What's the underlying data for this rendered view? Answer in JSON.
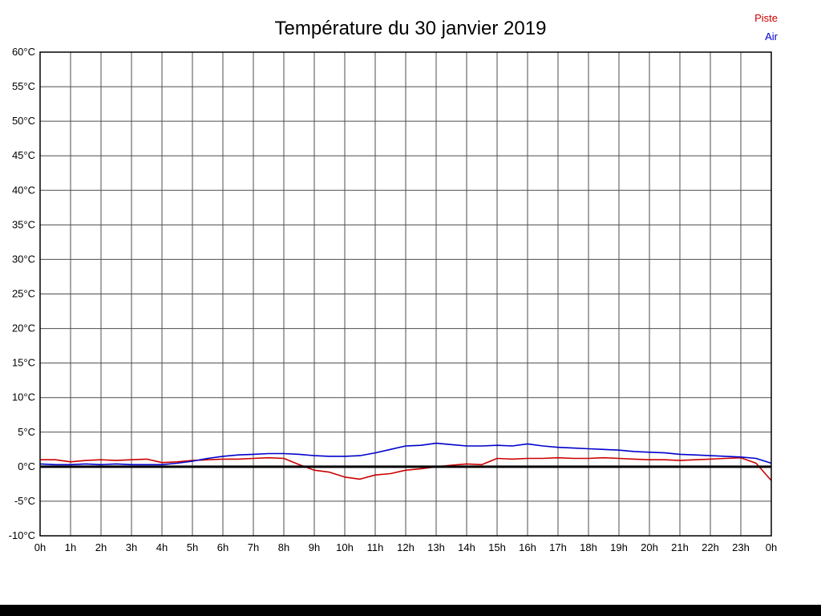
{
  "page": {
    "title": "Température du 30 janvier 2019"
  },
  "legend": {
    "items": [
      {
        "label": "Piste",
        "color": "#cc0000"
      },
      {
        "label": "Air",
        "color": "#0000cc"
      }
    ]
  },
  "chart_data": {
    "type": "line",
    "title": "Température du 30 janvier 2019",
    "xlabel": "",
    "ylabel": "",
    "xlim": [
      0,
      24
    ],
    "ylim": [
      -10,
      60
    ],
    "y_tick_step": 5,
    "y_tick_suffix": "°C",
    "x_tick_labels": [
      "0h",
      "1h",
      "2h",
      "3h",
      "4h",
      "5h",
      "6h",
      "7h",
      "8h",
      "9h",
      "10h",
      "11h",
      "12h",
      "13h",
      "14h",
      "15h",
      "16h",
      "17h",
      "18h",
      "19h",
      "20h",
      "21h",
      "22h",
      "23h",
      "0h"
    ],
    "grid": true,
    "zero_line": true,
    "grid_color": "#4d4d4d",
    "x_start": 0,
    "x_step": 0.5,
    "series": [
      {
        "name": "Piste",
        "color": "#cc0000",
        "values": [
          1.0,
          1.0,
          0.7,
          0.9,
          1.0,
          0.9,
          1.0,
          1.1,
          0.6,
          0.7,
          0.9,
          1.0,
          1.1,
          1.1,
          1.2,
          1.3,
          1.2,
          0.3,
          -0.5,
          -0.8,
          -1.5,
          -1.8,
          -1.2,
          -1.0,
          -0.5,
          -0.3,
          0.0,
          0.2,
          0.4,
          0.3,
          1.2,
          1.1,
          1.2,
          1.2,
          1.3,
          1.2,
          1.2,
          1.3,
          1.2,
          1.1,
          1.0,
          1.0,
          0.9,
          1.0,
          1.1,
          1.2,
          1.3,
          0.5,
          -2.0
        ]
      },
      {
        "name": "Air",
        "color": "#0000cc",
        "values": [
          0.4,
          0.3,
          0.3,
          0.4,
          0.3,
          0.4,
          0.3,
          0.3,
          0.3,
          0.5,
          0.8,
          1.2,
          1.5,
          1.7,
          1.8,
          1.9,
          1.9,
          1.8,
          1.6,
          1.5,
          1.5,
          1.6,
          2.0,
          2.5,
          3.0,
          3.1,
          3.4,
          3.2,
          3.0,
          3.0,
          3.1,
          3.0,
          3.3,
          3.0,
          2.8,
          2.7,
          2.6,
          2.5,
          2.4,
          2.2,
          2.1,
          2.0,
          1.8,
          1.7,
          1.6,
          1.5,
          1.4,
          1.2,
          0.5
        ]
      }
    ]
  }
}
